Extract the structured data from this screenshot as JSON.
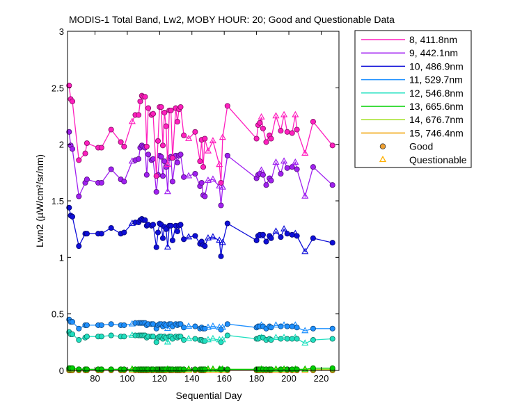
{
  "chart_data": {
    "type": "line",
    "title": "MODIS-1 Total Band, Lw2, MOBY HOUR: 20;  Good and Questionable Data",
    "xlabel": "Sequential Day",
    "ylabel": "Lwn2 (µW/cm²/sr/nm)",
    "xlim": [
      63,
      231
    ],
    "ylim": [
      0,
      3
    ],
    "xticks": [
      80,
      100,
      120,
      140,
      160,
      180,
      200,
      220
    ],
    "yticks": [
      0,
      0.5,
      1,
      1.5,
      2,
      2.5,
      3
    ],
    "ytick_labels": [
      "0",
      "0.5",
      "1",
      "1.5",
      "2",
      "2.5",
      "3"
    ],
    "grid": false,
    "legend_position": "outside-right",
    "marker_legend": [
      {
        "label": "Good",
        "marker": "circle",
        "color": "#f0a030"
      },
      {
        "label": "Questionable",
        "marker": "triangle",
        "color": "#ffb000"
      }
    ],
    "questionable_days": [
      103,
      125,
      138,
      150,
      153,
      157,
      159,
      183,
      192,
      197,
      204,
      210
    ],
    "days": [
      64,
      65,
      66,
      70,
      74,
      75,
      82,
      84,
      90,
      96,
      98,
      103,
      105,
      107,
      108,
      109,
      110,
      111,
      112,
      113,
      115,
      116,
      118,
      119,
      120,
      121,
      122,
      123,
      124,
      125,
      126,
      127,
      128,
      130,
      131,
      132,
      133,
      135,
      138,
      142,
      145,
      146,
      147,
      148,
      150,
      153,
      157,
      158,
      159,
      162,
      180,
      181,
      182,
      183,
      184,
      186,
      188,
      189,
      192,
      195,
      197,
      199,
      202,
      204,
      205,
      210,
      215,
      227
    ],
    "series": [
      {
        "name": "8, 411.8nm",
        "color": "#ff1fbe",
        "values": [
          2.52,
          2.4,
          2.38,
          1.86,
          1.92,
          2.01,
          1.97,
          1.97,
          2.13,
          2.02,
          1.98,
          2.2,
          2.26,
          2.26,
          2.38,
          2.43,
          2.42,
          2.42,
          1.98,
          2.32,
          2.26,
          2.27,
          1.72,
          2.03,
          2.33,
          2.33,
          1.99,
          2.28,
          2.16,
          1.82,
          2.3,
          2.3,
          1.88,
          2.32,
          2.2,
          2.31,
          2.33,
          2.08,
          2.05,
          2.11,
          1.85,
          2.04,
          1.8,
          2.05,
          1.94,
          2.03,
          1.82,
          1.66,
          2.06,
          2.34,
          2.05,
          2.17,
          2.19,
          2.24,
          2.14,
          2.02,
          2.08,
          2.05,
          2.25,
          2.12,
          2.26,
          2.11,
          2.1,
          2.26,
          2.13,
          1.92,
          2.2,
          1.99
        ]
      },
      {
        "name": "9, 442.1nm",
        "color": "#a020f0",
        "values": [
          2.11,
          1.99,
          1.96,
          1.54,
          1.66,
          1.69,
          1.66,
          1.66,
          1.78,
          1.69,
          1.67,
          1.85,
          1.86,
          1.87,
          1.97,
          1.99,
          1.98,
          1.97,
          1.73,
          1.91,
          1.86,
          1.87,
          1.58,
          1.73,
          1.9,
          1.89,
          1.72,
          1.85,
          1.8,
          1.58,
          1.88,
          1.89,
          1.67,
          1.9,
          1.84,
          1.9,
          1.91,
          1.71,
          1.72,
          1.74,
          1.63,
          1.66,
          1.55,
          1.54,
          1.68,
          1.69,
          1.63,
          1.46,
          1.62,
          1.9,
          1.7,
          1.73,
          1.74,
          1.77,
          1.73,
          1.64,
          1.7,
          1.68,
          1.84,
          1.74,
          1.85,
          1.79,
          1.8,
          1.84,
          1.78,
          1.54,
          1.8,
          1.64
        ]
      },
      {
        "name": "10, 486.9nm",
        "color": "#0e0ed8",
        "values": [
          1.44,
          1.37,
          1.36,
          1.1,
          1.21,
          1.21,
          1.21,
          1.21,
          1.26,
          1.21,
          1.22,
          1.3,
          1.31,
          1.31,
          1.33,
          1.34,
          1.33,
          1.33,
          1.28,
          1.29,
          1.28,
          1.29,
          1.09,
          1.22,
          1.3,
          1.29,
          1.17,
          1.27,
          1.25,
          1.09,
          1.28,
          1.28,
          1.15,
          1.28,
          1.23,
          1.28,
          1.29,
          1.16,
          1.18,
          1.19,
          1.12,
          1.14,
          1.11,
          1.1,
          1.17,
          1.18,
          1.15,
          1.01,
          1.13,
          1.3,
          1.15,
          1.19,
          1.2,
          1.19,
          1.2,
          1.14,
          1.19,
          1.17,
          1.23,
          1.18,
          1.25,
          1.21,
          1.2,
          1.21,
          1.19,
          1.05,
          1.17,
          1.13
        ]
      },
      {
        "name": "11, 529.7nm",
        "color": "#1e90ff",
        "values": [
          0.45,
          0.43,
          0.43,
          0.37,
          0.4,
          0.4,
          0.4,
          0.4,
          0.41,
          0.4,
          0.4,
          0.41,
          0.42,
          0.42,
          0.42,
          0.42,
          0.42,
          0.42,
          0.4,
          0.41,
          0.41,
          0.41,
          0.37,
          0.4,
          0.41,
          0.41,
          0.39,
          0.41,
          0.4,
          0.37,
          0.41,
          0.41,
          0.39,
          0.41,
          0.4,
          0.41,
          0.41,
          0.38,
          0.39,
          0.39,
          0.37,
          0.38,
          0.37,
          0.37,
          0.38,
          0.39,
          0.38,
          0.36,
          0.38,
          0.41,
          0.38,
          0.39,
          0.39,
          0.4,
          0.39,
          0.37,
          0.39,
          0.38,
          0.4,
          0.39,
          0.4,
          0.39,
          0.39,
          0.4,
          0.38,
          0.35,
          0.37,
          0.37
        ]
      },
      {
        "name": "12, 546.8nm",
        "color": "#20e0c0",
        "values": [
          0.34,
          0.32,
          0.32,
          0.27,
          0.29,
          0.3,
          0.3,
          0.3,
          0.31,
          0.3,
          0.3,
          0.31,
          0.31,
          0.31,
          0.31,
          0.31,
          0.31,
          0.31,
          0.29,
          0.3,
          0.3,
          0.3,
          0.25,
          0.29,
          0.3,
          0.3,
          0.28,
          0.3,
          0.29,
          0.25,
          0.3,
          0.3,
          0.28,
          0.3,
          0.29,
          0.3,
          0.3,
          0.27,
          0.28,
          0.28,
          0.27,
          0.27,
          0.26,
          0.26,
          0.27,
          0.28,
          0.27,
          0.25,
          0.27,
          0.31,
          0.28,
          0.28,
          0.29,
          0.29,
          0.29,
          0.27,
          0.28,
          0.27,
          0.29,
          0.28,
          0.29,
          0.28,
          0.28,
          0.29,
          0.28,
          0.24,
          0.27,
          0.28
        ]
      },
      {
        "name": "13, 665.6nm",
        "color": "#00d000",
        "values": [
          0.02,
          0.02,
          0.02,
          0.01,
          0.01,
          0.01,
          0.01,
          0.01,
          0.01,
          0.01,
          0.01,
          0.01,
          0.01,
          0.01,
          0.01,
          0.01,
          0.01,
          0.01,
          0.01,
          0.01,
          0.01,
          0.01,
          0.01,
          0.01,
          0.01,
          0.01,
          0.01,
          0.01,
          0.01,
          0.01,
          0.01,
          0.01,
          0.01,
          0.01,
          0.01,
          0.01,
          0.01,
          0.01,
          0.01,
          0.01,
          0.01,
          0.01,
          0.01,
          0.01,
          0.01,
          0.01,
          0.01,
          0.01,
          0.01,
          0.01,
          0.01,
          0.01,
          0.01,
          0.01,
          0.01,
          0.01,
          0.01,
          0.01,
          0.01,
          0.01,
          0.01,
          0.01,
          0.01,
          0.01,
          0.01,
          0.01,
          0.02,
          0.02
        ]
      },
      {
        "name": "14, 676.7nm",
        "color": "#a0e020",
        "values": [
          0.01,
          0.01,
          0.01,
          0.01,
          0.01,
          0.01,
          0.01,
          0.01,
          0.01,
          0.01,
          0.01,
          0.01,
          0.01,
          0.01,
          0.01,
          0.01,
          0.01,
          0.01,
          0.01,
          0.01,
          0.01,
          0.01,
          0.01,
          0.01,
          0.01,
          0.01,
          0.01,
          0.01,
          0.01,
          0.01,
          0.01,
          0.01,
          0.01,
          0.01,
          0.01,
          0.01,
          0.01,
          0.01,
          0.01,
          0.01,
          0.01,
          0.01,
          0.01,
          0.01,
          0.01,
          0.01,
          0.01,
          0.01,
          0.01,
          0.01,
          0.01,
          0.01,
          0.01,
          0.01,
          0.01,
          0.01,
          0.01,
          0.01,
          0.01,
          0.01,
          0.01,
          0.01,
          0.01,
          0.01,
          0.01,
          0.01,
          0.01,
          0.01
        ]
      },
      {
        "name": "15, 746.4nm",
        "color": "#f0a000",
        "values": [
          0.0,
          0.0,
          0.0,
          0.0,
          0.0,
          0.0,
          0.0,
          0.0,
          0.0,
          0.0,
          0.0,
          0.0,
          0.0,
          0.0,
          0.0,
          0.0,
          0.0,
          0.0,
          0.0,
          0.0,
          0.0,
          0.0,
          0.0,
          0.0,
          0.0,
          0.0,
          0.0,
          0.0,
          0.0,
          0.0,
          0.0,
          0.0,
          0.0,
          0.0,
          0.0,
          0.0,
          0.0,
          0.0,
          0.0,
          0.0,
          0.0,
          0.0,
          0.0,
          0.0,
          0.0,
          0.0,
          0.0,
          0.0,
          0.0,
          0.0,
          0.0,
          0.0,
          0.0,
          0.0,
          0.0,
          0.0,
          0.0,
          0.0,
          0.0,
          0.0,
          0.0,
          0.0,
          0.0,
          0.0,
          0.0,
          0.0,
          0.0,
          0.0
        ]
      }
    ]
  }
}
